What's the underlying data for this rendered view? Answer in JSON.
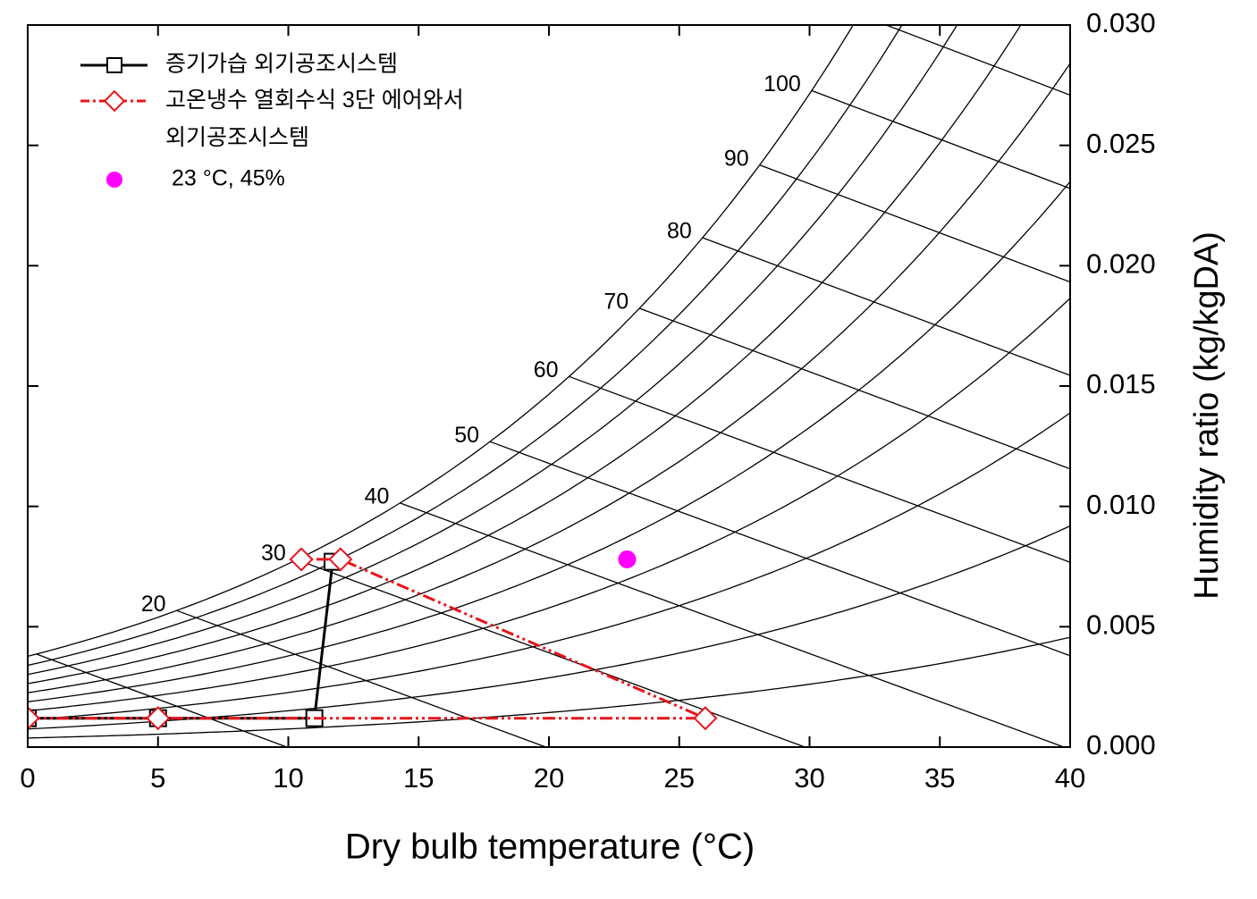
{
  "chart_data": {
    "type": "line",
    "xlabel": "Dry bulb temperature (°C)",
    "ylabel": "Humidity ratio (kg/kgDA)",
    "xlim": [
      0,
      40
    ],
    "xticks": [
      0,
      5,
      10,
      15,
      20,
      25,
      30,
      35,
      40
    ],
    "ylim": [
      0,
      0.03
    ],
    "yticks": [
      {
        "value": 0,
        "label": "0.000"
      },
      {
        "value": 0.005,
        "label": "0.005"
      },
      {
        "value": 0.01,
        "label": "0.010"
      },
      {
        "value": 0.015,
        "label": "0.015"
      },
      {
        "value": 0.02,
        "label": "0.020"
      },
      {
        "value": 0.025,
        "label": "0.025"
      },
      {
        "value": 0.03,
        "label": "0.030"
      }
    ],
    "legend": "upper left",
    "rh_lines": [
      10,
      20,
      30,
      40,
      50,
      60,
      70,
      80,
      90,
      100
    ],
    "enthalpy_lines": [
      20,
      30,
      40,
      50,
      60,
      70,
      80,
      90,
      100
    ],
    "unlabeled_enthalpy_lines": [
      10,
      110
    ],
    "series": [
      {
        "name": "증기가습 외기공조시스템",
        "color": "#000000",
        "marker": "square",
        "dash": "solid",
        "x": [
          0,
          5,
          11,
          11.7
        ],
        "values": [
          0.0012,
          0.0012,
          0.0012,
          0.0077
        ]
      },
      {
        "name": "고온냉수 열회수식 3단 에어와서\n외기공조시스템",
        "color": "#e8141c",
        "marker": "diamond",
        "dash": "dash-dot-dot",
        "x": [
          0,
          5,
          26,
          12,
          10.5
        ],
        "values": [
          0.0012,
          0.0012,
          0.0012,
          0.0078,
          0.0078
        ]
      },
      {
        "name": "23 °C, 45%",
        "color": "#ff00ff",
        "marker": "circle",
        "dash": "none",
        "x": [
          23
        ],
        "values": [
          0.0078
        ]
      }
    ]
  }
}
